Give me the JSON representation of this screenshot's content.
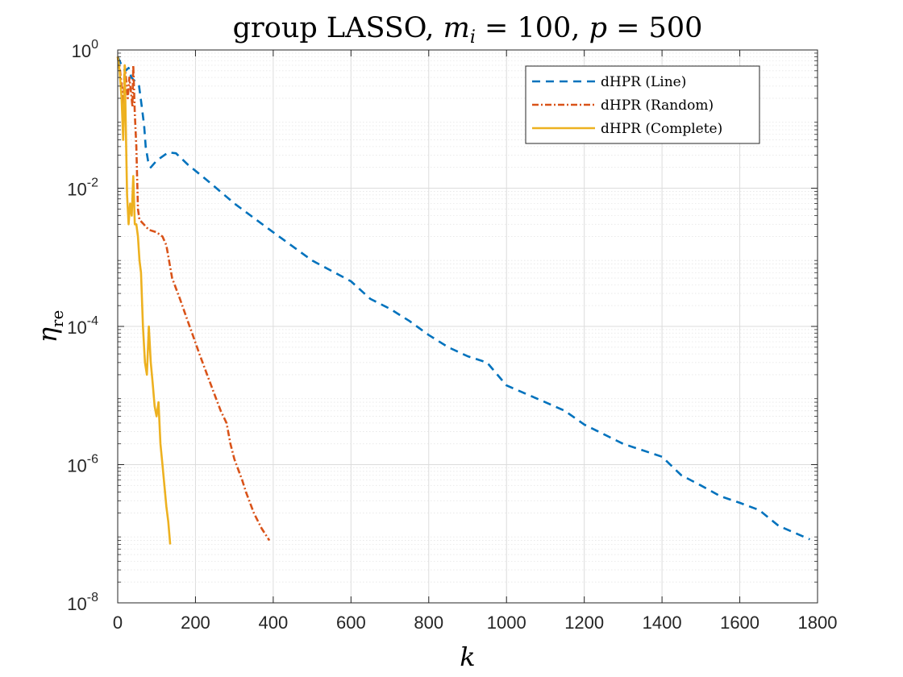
{
  "chart_data": {
    "type": "line",
    "title": {
      "prefix": "group LASSO, ",
      "m_sym": "m",
      "m_sub": "i",
      "m_val": " = 100, ",
      "p_sym": "p",
      "p_val": " = 500"
    },
    "xlabel": "k",
    "ylabel": {
      "base": "η",
      "sub": "re"
    },
    "xlim": [
      0,
      1800
    ],
    "ylim_exp": [
      -8,
      0
    ],
    "x_ticks": [
      0,
      200,
      400,
      600,
      800,
      1000,
      1200,
      1400,
      1600,
      1800
    ],
    "x_tick_labels": [
      "0",
      "200",
      "400",
      "600",
      "800",
      "1000",
      "1200",
      "1400",
      "1600",
      "1800"
    ],
    "y_ticks_exp": [
      -8,
      -6,
      -4,
      -2,
      0
    ],
    "y_tick_labels": [
      {
        "base": "10",
        "exp": "-8"
      },
      {
        "base": "10",
        "exp": "-6"
      },
      {
        "base": "10",
        "exp": "-4"
      },
      {
        "base": "10",
        "exp": "-2"
      },
      {
        "base": "10",
        "exp": "0"
      }
    ],
    "y_scale": "log",
    "grid": true,
    "legend_position": "top-right",
    "series": [
      {
        "name": "dHPR (Line)",
        "color": "#0072BD",
        "dash": "dashed",
        "points": [
          [
            0,
            0.8
          ],
          [
            10,
            0.6
          ],
          [
            20,
            0.5
          ],
          [
            28,
            0.55
          ],
          [
            35,
            0.4
          ],
          [
            45,
            0.35
          ],
          [
            55,
            0.3
          ],
          [
            62,
            0.15
          ],
          [
            68,
            0.08
          ],
          [
            72,
            0.04
          ],
          [
            78,
            0.025
          ],
          [
            85,
            0.02
          ],
          [
            100,
            0.025
          ],
          [
            130,
            0.033
          ],
          [
            150,
            0.032
          ],
          [
            180,
            0.022
          ],
          [
            230,
            0.013
          ],
          [
            300,
            0.006
          ],
          [
            400,
            0.0023
          ],
          [
            500,
            0.0009
          ],
          [
            600,
            0.00045
          ],
          [
            650,
            0.00025
          ],
          [
            700,
            0.00018
          ],
          [
            750,
            0.00012
          ],
          [
            800,
            7.5e-05
          ],
          [
            850,
            5e-05
          ],
          [
            900,
            3.7e-05
          ],
          [
            950,
            3e-05
          ],
          [
            1000,
            1.4e-05
          ],
          [
            1100,
            8e-06
          ],
          [
            1150,
            6e-06
          ],
          [
            1200,
            3.8e-06
          ],
          [
            1300,
            2e-06
          ],
          [
            1400,
            1.3e-06
          ],
          [
            1450,
            7e-07
          ],
          [
            1500,
            5e-07
          ],
          [
            1550,
            3.5e-07
          ],
          [
            1600,
            2.8e-07
          ],
          [
            1650,
            2.2e-07
          ],
          [
            1700,
            1.3e-07
          ],
          [
            1780,
            8.3e-08
          ]
        ]
      },
      {
        "name": "dHPR (Random)",
        "color": "#D95319",
        "dash": "dashdot",
        "points": [
          [
            0,
            0.8
          ],
          [
            6,
            0.5
          ],
          [
            10,
            0.3
          ],
          [
            14,
            0.15
          ],
          [
            18,
            0.6
          ],
          [
            22,
            0.35
          ],
          [
            26,
            0.2
          ],
          [
            30,
            0.4
          ],
          [
            34,
            0.25
          ],
          [
            38,
            0.15
          ],
          [
            40,
            0.6
          ],
          [
            44,
            0.12
          ],
          [
            48,
            0.04
          ],
          [
            52,
            0.005
          ],
          [
            56,
            0.0035
          ],
          [
            80,
            0.0025
          ],
          [
            100,
            0.0023
          ],
          [
            115,
            0.002
          ],
          [
            125,
            0.0015
          ],
          [
            140,
            0.0005
          ],
          [
            160,
            0.00025
          ],
          [
            180,
            0.00012
          ],
          [
            195,
            7e-05
          ],
          [
            210,
            4e-05
          ],
          [
            230,
            2e-05
          ],
          [
            250,
            1e-05
          ],
          [
            265,
            6e-06
          ],
          [
            280,
            4e-06
          ],
          [
            290,
            2e-06
          ],
          [
            300,
            1.2e-06
          ],
          [
            320,
            6e-07
          ],
          [
            330,
            4e-07
          ],
          [
            350,
            2e-07
          ],
          [
            370,
            1.2e-07
          ],
          [
            390,
            8e-08
          ]
        ]
      },
      {
        "name": "dHPR (Complete)",
        "color": "#EDB120",
        "dash": "solid",
        "points": [
          [
            0,
            0.8
          ],
          [
            5,
            0.5
          ],
          [
            10,
            0.2
          ],
          [
            14,
            0.05
          ],
          [
            18,
            0.6
          ],
          [
            20,
            0.15
          ],
          [
            24,
            0.008
          ],
          [
            28,
            0.003
          ],
          [
            32,
            0.006
          ],
          [
            36,
            0.004
          ],
          [
            40,
            0.015
          ],
          [
            44,
            0.003
          ],
          [
            48,
            0.003
          ],
          [
            52,
            0.002
          ],
          [
            56,
            0.0009
          ],
          [
            60,
            0.0006
          ],
          [
            65,
            0.0001
          ],
          [
            70,
            3e-05
          ],
          [
            75,
            2e-05
          ],
          [
            80,
            0.0001
          ],
          [
            85,
            3e-05
          ],
          [
            90,
            1.5e-05
          ],
          [
            95,
            7e-06
          ],
          [
            100,
            5e-06
          ],
          [
            105,
            8e-06
          ],
          [
            110,
            2e-06
          ],
          [
            115,
            1e-06
          ],
          [
            120,
            5e-07
          ],
          [
            125,
            2.5e-07
          ],
          [
            130,
            1.5e-07
          ],
          [
            135,
            7e-08
          ]
        ]
      }
    ]
  }
}
